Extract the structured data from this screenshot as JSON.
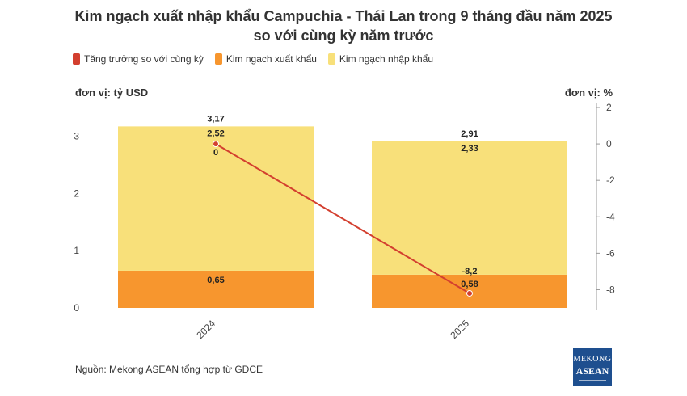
{
  "title_line1": "Kim ngạch xuất nhập khẩu Campuchia - Thái Lan trong 9 tháng đầu năm 2025",
  "title_line2": "so với cùng kỳ năm trước",
  "unit_left": "đơn vị: tỷ USD",
  "unit_right": "đơn vị: %",
  "source": "Nguồn: Mekong ASEAN tổng hợp từ GDCE",
  "logo": {
    "line1": "MEKONG",
    "line2": "ASEAN"
  },
  "colors": {
    "growth": "#d33f2f",
    "export": "#f7962e",
    "import": "#f8e07a"
  },
  "chart_data": {
    "type": "bar",
    "stacked": true,
    "categories": [
      "2024",
      "2025"
    ],
    "series": [
      {
        "name": "Kim ngạch xuất khẩu",
        "axis": "left",
        "values": [
          0.65,
          0.58
        ],
        "labels": [
          "0,65",
          "0,58"
        ]
      },
      {
        "name": "Kim ngạch nhập khẩu",
        "axis": "left",
        "values": [
          2.52,
          2.33
        ],
        "labels": [
          "2,52",
          "2,33"
        ]
      },
      {
        "name": "Tăng trưởng so với cùng kỳ",
        "type": "line",
        "axis": "right",
        "values": [
          0,
          -8.2
        ],
        "labels": [
          "0",
          "-8,2"
        ]
      }
    ],
    "totals": [
      3.17,
      2.91
    ],
    "total_labels": [
      "3,17",
      "2,91"
    ],
    "y_left": {
      "min": 0,
      "max": 3.5,
      "ticks": [
        0,
        1,
        2,
        3
      ]
    },
    "y_right": {
      "min": -9,
      "max": 2,
      "ticks": [
        2,
        0,
        -2,
        -4,
        -6,
        -8
      ]
    },
    "legend_position": "top-left",
    "grid": false
  }
}
